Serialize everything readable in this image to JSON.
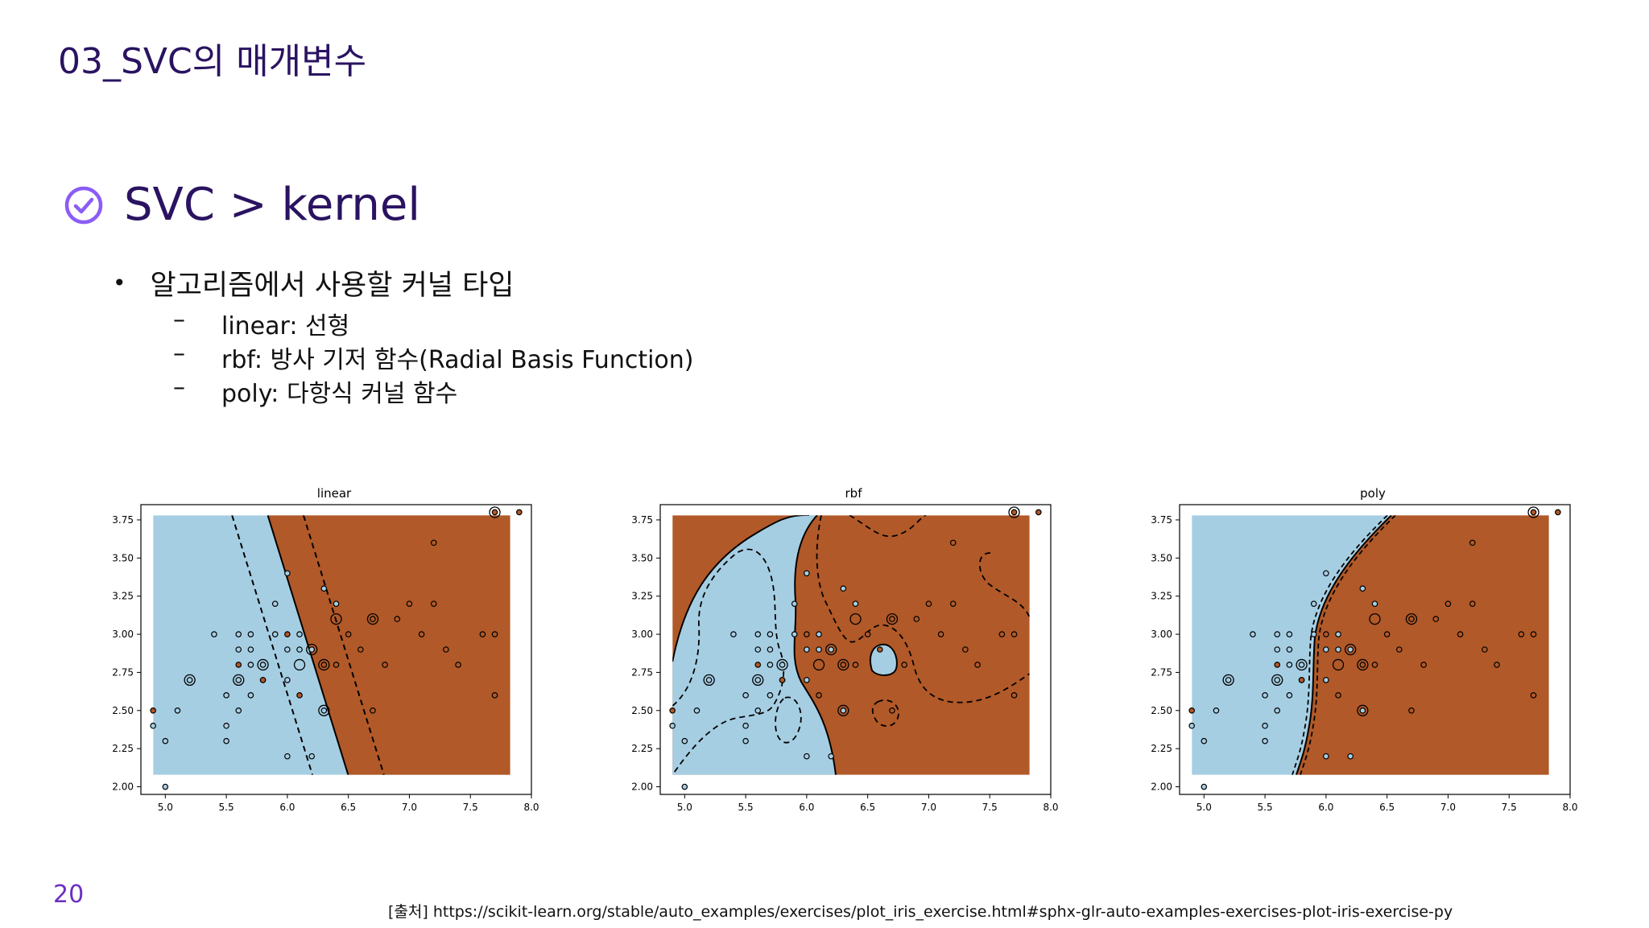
{
  "slide": {
    "title": "03_SVC의 매개변수",
    "section": "SVC > kernel",
    "bullet": "알고리즘에서 사용할 커널 타입",
    "sub_items": [
      {
        "dash": "–",
        "text": "linear: 선형"
      },
      {
        "dash": "–",
        "text": "rbf: 방사 기저 함수(Radial Basis Function)"
      },
      {
        "dash": "–",
        "text": "poly: 다항식 커널 함수"
      }
    ],
    "page_number": "20",
    "source": "[출처] https://scikit-learn.org/stable/auto_examples/exercises/plot_iris_exercise.html#sphx-glr-auto-examples-exercises-plot-iris-exercise-py",
    "icons": {
      "section": "check-circle-icon"
    }
  },
  "colors": {
    "title": "#2a1361",
    "accent": "#8b5cf6",
    "class0": "#a6cee3",
    "class1": "#b15928"
  },
  "chart_data": [
    {
      "type": "scatter",
      "title": "linear",
      "xlim": [
        4.8,
        8.0
      ],
      "ylim": [
        1.95,
        3.85
      ],
      "xticks": [
        "5.0",
        "5.5",
        "6.0",
        "6.5",
        "7.0",
        "7.5",
        "8.0"
      ],
      "yticks": [
        "2.00",
        "2.25",
        "2.50",
        "2.75",
        "3.00",
        "3.25",
        "3.50",
        "3.75"
      ],
      "points": [
        [
          4.9,
          2.5,
          1
        ],
        [
          4.9,
          2.4,
          0
        ],
        [
          5.0,
          2.0,
          0
        ],
        [
          5.0,
          2.3,
          0
        ],
        [
          5.1,
          2.5,
          0
        ],
        [
          5.2,
          2.7,
          0
        ],
        [
          5.4,
          3.0,
          0
        ],
        [
          5.5,
          2.6,
          0
        ],
        [
          5.5,
          2.4,
          0
        ],
        [
          5.5,
          2.3,
          0
        ],
        [
          5.6,
          2.9,
          0
        ],
        [
          5.6,
          3.0,
          0
        ],
        [
          5.6,
          2.7,
          0
        ],
        [
          5.6,
          2.5,
          0
        ],
        [
          5.7,
          3.0,
          0
        ],
        [
          5.7,
          2.9,
          0
        ],
        [
          5.7,
          2.8,
          0
        ],
        [
          5.7,
          2.6,
          0
        ],
        [
          5.8,
          2.8,
          0
        ],
        [
          5.8,
          2.7,
          0
        ],
        [
          5.9,
          3.2,
          0
        ],
        [
          5.9,
          3.0,
          0
        ],
        [
          6.0,
          3.4,
          0
        ],
        [
          6.0,
          2.9,
          0
        ],
        [
          6.0,
          2.7,
          0
        ],
        [
          6.0,
          2.2,
          0
        ],
        [
          6.1,
          3.0,
          0
        ],
        [
          6.1,
          2.9,
          0
        ],
        [
          6.2,
          2.9,
          0
        ],
        [
          6.2,
          2.2,
          0
        ],
        [
          6.3,
          2.5,
          0
        ],
        [
          6.3,
          3.3,
          0
        ],
        [
          6.4,
          3.2,
          0
        ],
        [
          6.5,
          3.0,
          1
        ],
        [
          6.6,
          2.9,
          1
        ],
        [
          6.7,
          3.1,
          1
        ],
        [
          6.7,
          2.5,
          1
        ],
        [
          6.8,
          2.8,
          1
        ],
        [
          6.9,
          3.1,
          1
        ],
        [
          7.0,
          3.2,
          1
        ],
        [
          7.1,
          3.0,
          1
        ],
        [
          7.2,
          3.6,
          1
        ],
        [
          7.2,
          3.2,
          1
        ],
        [
          7.3,
          2.9,
          1
        ],
        [
          7.4,
          2.8,
          1
        ],
        [
          7.6,
          3.0,
          1
        ],
        [
          7.7,
          3.8,
          1
        ],
        [
          7.7,
          3.0,
          1
        ],
        [
          7.7,
          2.6,
          1
        ],
        [
          7.9,
          3.8,
          1
        ],
        [
          5.8,
          2.7,
          1
        ],
        [
          6.0,
          3.0,
          1
        ],
        [
          6.1,
          2.6,
          1
        ],
        [
          5.6,
          2.8,
          1
        ],
        [
          6.3,
          2.8,
          1
        ],
        [
          6.4,
          2.8,
          1
        ]
      ],
      "support_vectors": [
        [
          5.2,
          2.7
        ],
        [
          5.6,
          2.7
        ],
        [
          5.8,
          2.8
        ],
        [
          6.1,
          2.8
        ],
        [
          6.2,
          2.9
        ],
        [
          6.3,
          2.8
        ],
        [
          6.3,
          2.5
        ],
        [
          6.4,
          3.1
        ],
        [
          6.7,
          3.1
        ],
        [
          7.7,
          3.8
        ]
      ]
    },
    {
      "type": "scatter",
      "title": "rbf",
      "xlim": [
        4.8,
        8.0
      ],
      "ylim": [
        1.95,
        3.85
      ],
      "xticks": [
        "5.0",
        "5.5",
        "6.0",
        "6.5",
        "7.0",
        "7.5",
        "8.0"
      ],
      "yticks": [
        "2.00",
        "2.25",
        "2.50",
        "2.75",
        "3.00",
        "3.25",
        "3.50",
        "3.75"
      ],
      "points": [
        [
          4.9,
          2.5,
          1
        ],
        [
          4.9,
          2.4,
          0
        ],
        [
          5.0,
          2.0,
          0
        ],
        [
          5.0,
          2.3,
          0
        ],
        [
          5.1,
          2.5,
          0
        ],
        [
          5.2,
          2.7,
          0
        ],
        [
          5.4,
          3.0,
          0
        ],
        [
          5.5,
          2.6,
          0
        ],
        [
          5.5,
          2.4,
          0
        ],
        [
          5.5,
          2.3,
          0
        ],
        [
          5.6,
          2.9,
          0
        ],
        [
          5.6,
          3.0,
          0
        ],
        [
          5.6,
          2.7,
          0
        ],
        [
          5.6,
          2.5,
          0
        ],
        [
          5.7,
          3.0,
          0
        ],
        [
          5.7,
          2.9,
          0
        ],
        [
          5.7,
          2.8,
          0
        ],
        [
          5.7,
          2.6,
          0
        ],
        [
          5.8,
          2.8,
          0
        ],
        [
          5.8,
          2.7,
          0
        ],
        [
          5.9,
          3.2,
          0
        ],
        [
          5.9,
          3.0,
          0
        ],
        [
          6.0,
          3.4,
          0
        ],
        [
          6.0,
          2.9,
          0
        ],
        [
          6.0,
          2.7,
          0
        ],
        [
          6.0,
          2.2,
          0
        ],
        [
          6.1,
          3.0,
          0
        ],
        [
          6.1,
          2.9,
          0
        ],
        [
          6.2,
          2.9,
          0
        ],
        [
          6.2,
          2.2,
          0
        ],
        [
          6.3,
          2.5,
          0
        ],
        [
          6.3,
          3.3,
          0
        ],
        [
          6.4,
          3.2,
          0
        ],
        [
          6.5,
          3.0,
          1
        ],
        [
          6.6,
          2.9,
          1
        ],
        [
          6.7,
          3.1,
          1
        ],
        [
          6.7,
          2.5,
          1
        ],
        [
          6.8,
          2.8,
          1
        ],
        [
          6.9,
          3.1,
          1
        ],
        [
          7.0,
          3.2,
          1
        ],
        [
          7.1,
          3.0,
          1
        ],
        [
          7.2,
          3.6,
          1
        ],
        [
          7.2,
          3.2,
          1
        ],
        [
          7.3,
          2.9,
          1
        ],
        [
          7.4,
          2.8,
          1
        ],
        [
          7.6,
          3.0,
          1
        ],
        [
          7.7,
          3.8,
          1
        ],
        [
          7.7,
          3.0,
          1
        ],
        [
          7.7,
          2.6,
          1
        ],
        [
          7.9,
          3.8,
          1
        ],
        [
          5.8,
          2.7,
          1
        ],
        [
          6.0,
          3.0,
          1
        ],
        [
          6.1,
          2.6,
          1
        ],
        [
          5.6,
          2.8,
          1
        ],
        [
          6.3,
          2.8,
          1
        ],
        [
          6.4,
          2.8,
          1
        ]
      ],
      "support_vectors": [
        [
          5.2,
          2.7
        ],
        [
          5.6,
          2.7
        ],
        [
          5.8,
          2.8
        ],
        [
          6.1,
          2.8
        ],
        [
          6.2,
          2.9
        ],
        [
          6.3,
          2.8
        ],
        [
          6.3,
          2.5
        ],
        [
          6.4,
          3.1
        ],
        [
          6.7,
          3.1
        ],
        [
          7.7,
          3.8
        ]
      ]
    },
    {
      "type": "scatter",
      "title": "poly",
      "xlim": [
        4.8,
        8.0
      ],
      "ylim": [
        1.95,
        3.85
      ],
      "xticks": [
        "5.0",
        "5.5",
        "6.0",
        "6.5",
        "7.0",
        "7.5",
        "8.0"
      ],
      "yticks": [
        "2.00",
        "2.25",
        "2.50",
        "2.75",
        "3.00",
        "3.25",
        "3.50",
        "3.75"
      ],
      "points": [
        [
          4.9,
          2.5,
          1
        ],
        [
          4.9,
          2.4,
          0
        ],
        [
          5.0,
          2.0,
          0
        ],
        [
          5.0,
          2.3,
          0
        ],
        [
          5.1,
          2.5,
          0
        ],
        [
          5.2,
          2.7,
          0
        ],
        [
          5.4,
          3.0,
          0
        ],
        [
          5.5,
          2.6,
          0
        ],
        [
          5.5,
          2.4,
          0
        ],
        [
          5.5,
          2.3,
          0
        ],
        [
          5.6,
          2.9,
          0
        ],
        [
          5.6,
          3.0,
          0
        ],
        [
          5.6,
          2.7,
          0
        ],
        [
          5.6,
          2.5,
          0
        ],
        [
          5.7,
          3.0,
          0
        ],
        [
          5.7,
          2.9,
          0
        ],
        [
          5.7,
          2.8,
          0
        ],
        [
          5.7,
          2.6,
          0
        ],
        [
          5.8,
          2.8,
          0
        ],
        [
          5.8,
          2.7,
          0
        ],
        [
          5.9,
          3.2,
          0
        ],
        [
          5.9,
          3.0,
          0
        ],
        [
          6.0,
          3.4,
          0
        ],
        [
          6.0,
          2.9,
          0
        ],
        [
          6.0,
          2.7,
          0
        ],
        [
          6.0,
          2.2,
          0
        ],
        [
          6.1,
          3.0,
          0
        ],
        [
          6.1,
          2.9,
          0
        ],
        [
          6.2,
          2.9,
          0
        ],
        [
          6.2,
          2.2,
          0
        ],
        [
          6.3,
          2.5,
          0
        ],
        [
          6.3,
          3.3,
          0
        ],
        [
          6.4,
          3.2,
          0
        ],
        [
          6.5,
          3.0,
          1
        ],
        [
          6.6,
          2.9,
          1
        ],
        [
          6.7,
          3.1,
          1
        ],
        [
          6.7,
          2.5,
          1
        ],
        [
          6.8,
          2.8,
          1
        ],
        [
          6.9,
          3.1,
          1
        ],
        [
          7.0,
          3.2,
          1
        ],
        [
          7.1,
          3.0,
          1
        ],
        [
          7.2,
          3.6,
          1
        ],
        [
          7.2,
          3.2,
          1
        ],
        [
          7.3,
          2.9,
          1
        ],
        [
          7.4,
          2.8,
          1
        ],
        [
          7.6,
          3.0,
          1
        ],
        [
          7.7,
          3.8,
          1
        ],
        [
          7.7,
          3.0,
          1
        ],
        [
          7.7,
          2.6,
          1
        ],
        [
          7.9,
          3.8,
          1
        ],
        [
          5.8,
          2.7,
          1
        ],
        [
          6.0,
          3.0,
          1
        ],
        [
          6.1,
          2.6,
          1
        ],
        [
          5.6,
          2.8,
          1
        ],
        [
          6.3,
          2.8,
          1
        ],
        [
          6.4,
          2.8,
          1
        ]
      ],
      "support_vectors": [
        [
          5.2,
          2.7
        ],
        [
          5.6,
          2.7
        ],
        [
          5.8,
          2.8
        ],
        [
          6.1,
          2.8
        ],
        [
          6.2,
          2.9
        ],
        [
          6.3,
          2.8
        ],
        [
          6.3,
          2.5
        ],
        [
          6.4,
          3.1
        ],
        [
          6.7,
          3.1
        ],
        [
          7.7,
          3.8
        ]
      ]
    }
  ]
}
